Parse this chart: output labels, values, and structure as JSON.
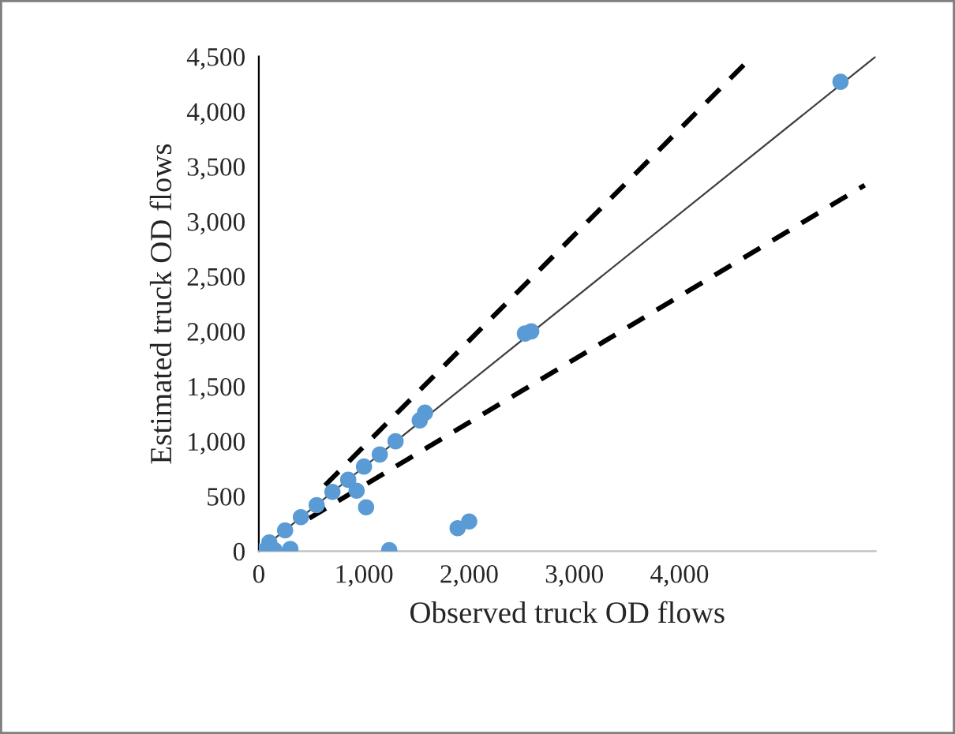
{
  "chart_data": {
    "type": "scatter",
    "xlabel": "Observed truck OD flows",
    "ylabel": "Estimated truck OD flows",
    "xlim": [
      0,
      5865
    ],
    "ylim": [
      0,
      4500
    ],
    "xticks": [
      {
        "value": 0,
        "label": "0"
      },
      {
        "value": 1000,
        "label": "1,000"
      },
      {
        "value": 2000,
        "label": "2,000"
      },
      {
        "value": 3000,
        "label": "3,000"
      },
      {
        "value": 4000,
        "label": "4,000"
      }
    ],
    "yticks": [
      {
        "value": 0,
        "label": "0"
      },
      {
        "value": 500,
        "label": "500"
      },
      {
        "value": 1000,
        "label": "1,000"
      },
      {
        "value": 1500,
        "label": "1,500"
      },
      {
        "value": 2000,
        "label": "2,000"
      },
      {
        "value": 2500,
        "label": "2,500"
      },
      {
        "value": 3000,
        "label": "3,000"
      },
      {
        "value": 3500,
        "label": "3,500"
      },
      {
        "value": 4000,
        "label": "4,000"
      },
      {
        "value": 4500,
        "label": "4,500"
      }
    ],
    "grid": false,
    "legend": false,
    "marker": "circle",
    "series": [
      {
        "color": "#5b9bd5",
        "x": [
          5530,
          2530,
          2590,
          1530,
          1580,
          930,
          1020,
          1240,
          1890,
          2000,
          100,
          250,
          400,
          550,
          700,
          850,
          1000,
          1150,
          1300,
          0,
          150,
          300
        ],
        "values": [
          4270,
          1980,
          2000,
          1190,
          1260,
          550,
          400,
          10,
          210,
          270,
          80,
          190,
          310,
          420,
          540,
          650,
          770,
          880,
          1000,
          0,
          10,
          20
        ]
      },
      {
        "type": "line",
        "color": "#404040",
        "line_style": "solid",
        "marker": "none",
        "x": [
          0,
          5865
        ],
        "values": [
          0,
          4500
        ]
      },
      {
        "type": "line",
        "color": "#000000",
        "line_style": "dashed",
        "marker": "none",
        "x": [
          630,
          4690
        ],
        "values": [
          600,
          4500
        ]
      },
      {
        "type": "line",
        "color": "#000000",
        "line_style": "dashed",
        "marker": "none",
        "x": [
          480,
          5760
        ],
        "values": [
          300,
          3330
        ]
      }
    ]
  }
}
